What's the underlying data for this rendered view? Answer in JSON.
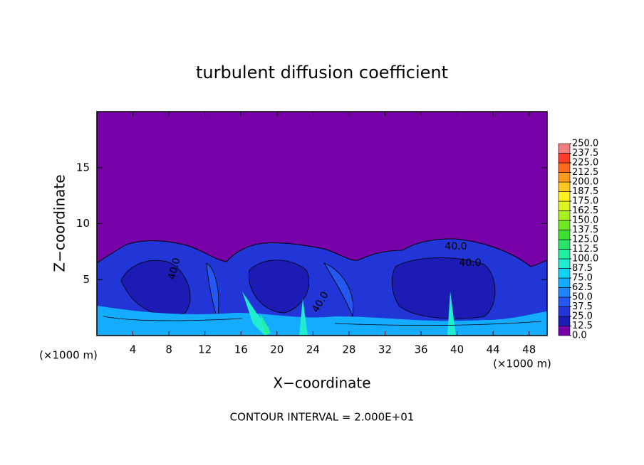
{
  "chart_data": {
    "type": "contour",
    "title": "turbulent diffusion coefficient",
    "xlabel": "X−coordinate",
    "ylabel": "Z−coordinate",
    "xunit": "(×1000 m)",
    "yunit": "(×1000 m)",
    "xlim": [
      0,
      50
    ],
    "xticks": [
      4,
      8,
      12,
      16,
      20,
      24,
      28,
      32,
      36,
      40,
      44,
      48
    ],
    "ylim": [
      0,
      20
    ],
    "yticks": [
      5,
      10,
      15
    ],
    "contour_interval": "CONTOUR INTERVAL = 2.000E+01",
    "contour_labels": [
      "40.0",
      "40.0",
      "40.0",
      "40.0"
    ],
    "colorbar": {
      "ticks": [
        {
          "value": 0,
          "label": "0.0"
        },
        {
          "value": 12.5,
          "label": "12.5"
        },
        {
          "value": 25,
          "label": "25.0"
        },
        {
          "value": 37.5,
          "label": "37.5"
        },
        {
          "value": 50,
          "label": "50.0"
        },
        {
          "value": 62.5,
          "label": "62.5"
        },
        {
          "value": 75,
          "label": "75.0"
        },
        {
          "value": 87.5,
          "label": "87.5"
        },
        {
          "value": 100,
          "label": "100.0"
        },
        {
          "value": 112.5,
          "label": "112.5"
        },
        {
          "value": 125,
          "label": "125.0"
        },
        {
          "value": 137.5,
          "label": "137.5"
        },
        {
          "value": 150,
          "label": "150.0"
        },
        {
          "value": 162.5,
          "label": "162.5"
        },
        {
          "value": 175,
          "label": "175.0"
        },
        {
          "value": 187.5,
          "label": "187.5"
        },
        {
          "value": 200,
          "label": "200.0"
        },
        {
          "value": 212.5,
          "label": "212.5"
        },
        {
          "value": 225,
          "label": "225.0"
        },
        {
          "value": 237.5,
          "label": "237.5"
        },
        {
          "value": 250,
          "label": "250.0"
        }
      ],
      "colors": [
        "#7800a8",
        "#1c1cb4",
        "#2236d8",
        "#2458f0",
        "#1e84ff",
        "#14acff",
        "#10d4f4",
        "#20ecd0",
        "#22f0a0",
        "#28e468",
        "#3ce030",
        "#6ee820",
        "#a6f020",
        "#dcf420",
        "#fff020",
        "#ffc820",
        "#ff9c20",
        "#ff6c20",
        "#ff3c28",
        "#f08080"
      ]
    }
  }
}
